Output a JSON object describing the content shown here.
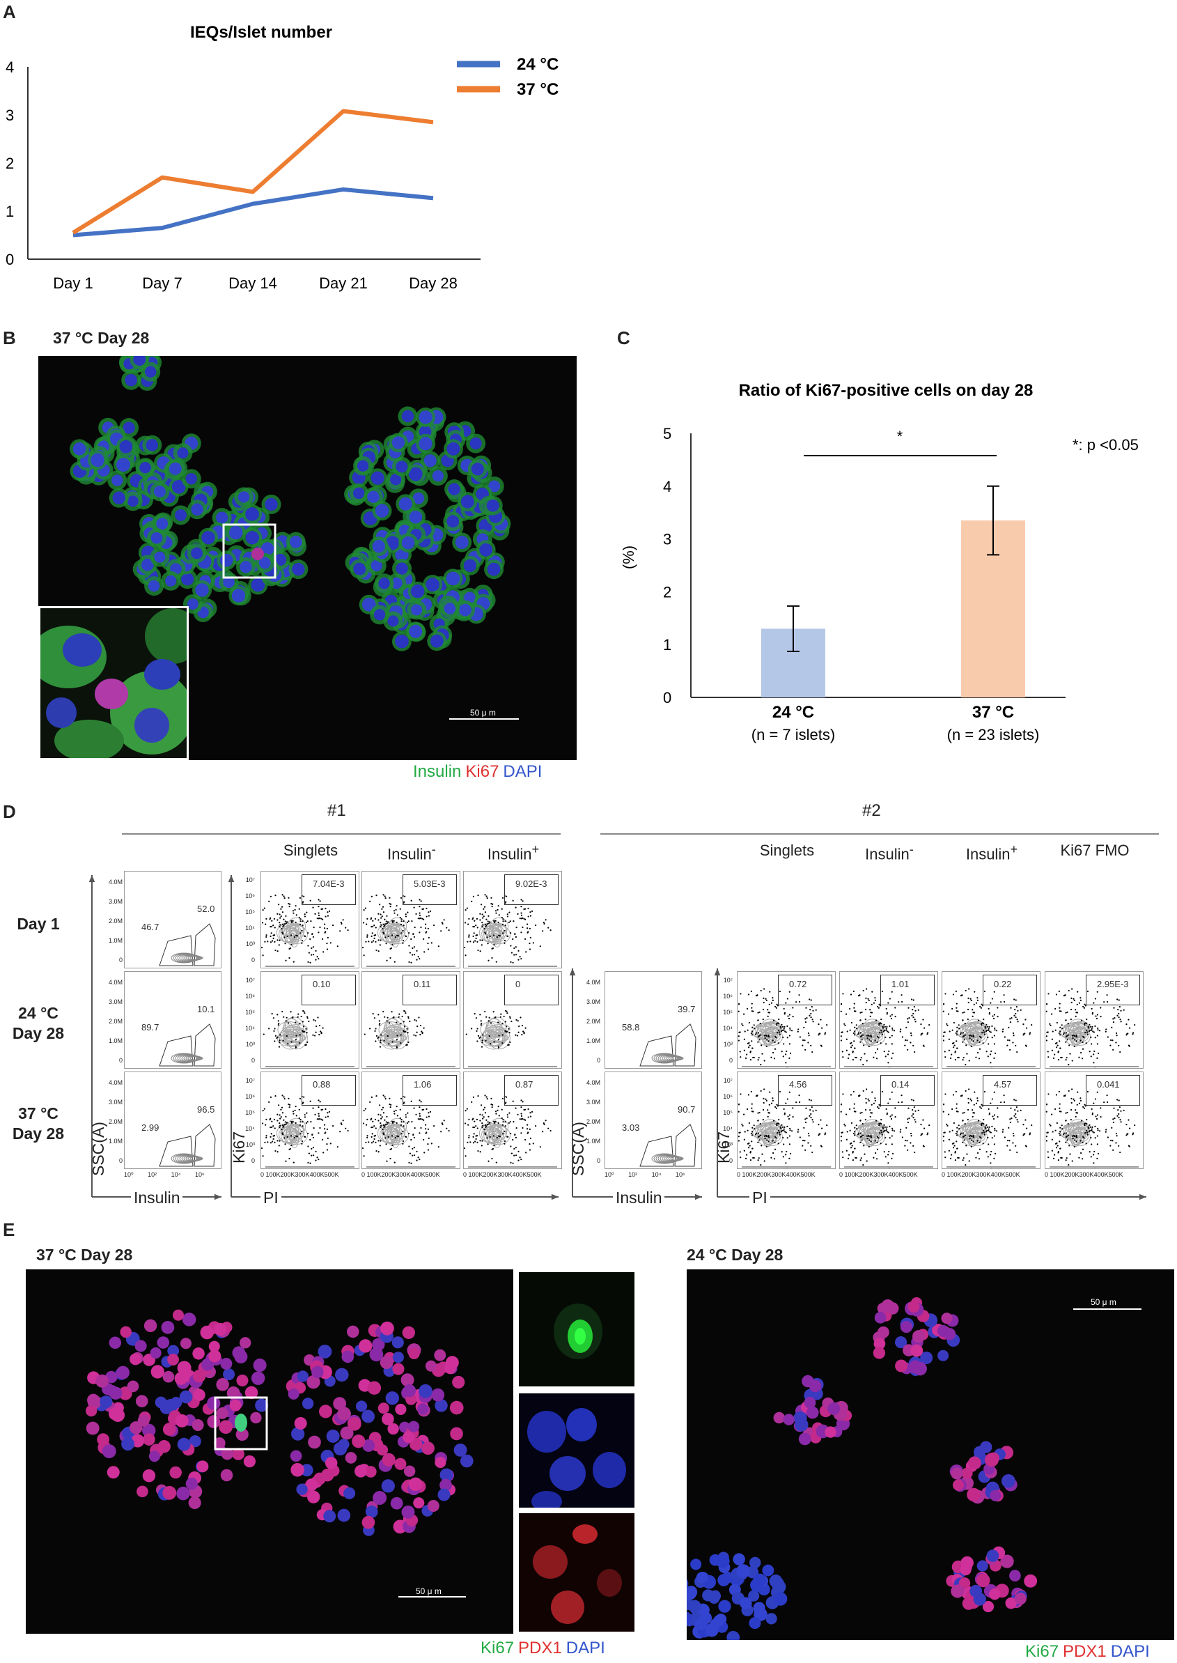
{
  "panels": {
    "a": {
      "letter": "A",
      "chart_data": {
        "type": "line",
        "title": "IEQs/Islet number",
        "xlabel": "",
        "ylabel": "",
        "categories": [
          "Day 1",
          "Day 7",
          "Day 14",
          "Day 21",
          "Day 28"
        ],
        "ylim": [
          0,
          4
        ],
        "yticks": [
          "0",
          "1",
          "2",
          "3",
          "4"
        ],
        "legend": "top-right",
        "grid": false,
        "series": [
          {
            "name": "24 °C",
            "color": "#4472c4",
            "values": [
              0.5,
              0.65,
              1.15,
              1.45,
              1.27
            ]
          },
          {
            "name": "37 °C",
            "color": "#ed7d31",
            "values": [
              0.55,
              1.7,
              1.4,
              3.08,
              2.85
            ]
          }
        ]
      }
    },
    "b": {
      "letter": "B",
      "title": "37 °C Day 28",
      "scale_bar": "50 μ m",
      "caption": [
        {
          "text": "Insulin",
          "color": "#22aa44"
        },
        {
          "text": "Ki67",
          "color": "#e03030"
        },
        {
          "text": "DAPI",
          "color": "#3355cc"
        }
      ]
    },
    "c": {
      "letter": "C",
      "chart_data": {
        "type": "bar",
        "title": "Ratio of Ki67-positive cells on day 28",
        "ylabel": "(%)",
        "xlabel": "",
        "categories": [
          "24 °C",
          "37 °C"
        ],
        "category_notes": [
          "(n = 7 islets)",
          "(n = 23 islets)"
        ],
        "values": [
          1.3,
          3.35
        ],
        "errors": [
          0.43,
          0.65
        ],
        "colors": [
          "#b4c7e7",
          "#f8cbad"
        ],
        "ylim": [
          0,
          5
        ],
        "yticks": [
          "0",
          "1",
          "2",
          "3",
          "4",
          "5"
        ],
        "significance": "*",
        "note": "*: p <0.05"
      }
    },
    "d": {
      "letter": "D",
      "group1": "#1",
      "group2": "#2",
      "columns1": [
        "Singlets",
        "Insulin-",
        "Insulin+"
      ],
      "columns2": [
        "Singlets",
        "Insulin-",
        "Insulin+",
        "Ki67 FMO"
      ],
      "rows": [
        {
          "label_line1": "Day 1",
          "label_line2": ""
        },
        {
          "label_line1": "24 °C",
          "label_line2": "Day 28"
        },
        {
          "label_line1": "37 °C",
          "label_line2": "Day 28"
        }
      ],
      "insulin_gates1": [
        {
          "neg": "46.7",
          "pos": "52.0"
        },
        {
          "neg": "89.7",
          "pos": "10.1"
        },
        {
          "neg": "2.99",
          "pos": "96.5"
        }
      ],
      "insulin_gates2": [
        {
          "neg": "58.8",
          "pos": "39.7"
        },
        {
          "neg": "3.03",
          "pos": "90.7"
        }
      ],
      "ki67_values1": [
        [
          "7.04E-3",
          "5.03E-3",
          "9.02E-3"
        ],
        [
          "0.10",
          "0.11",
          "0"
        ],
        [
          "0.88",
          "1.06",
          "0.87"
        ]
      ],
      "ki67_values2": [
        [
          "0.72",
          "1.01",
          "0.22",
          "2.95E-3"
        ],
        [
          "4.56",
          "0.14",
          "4.57",
          "0.041"
        ]
      ],
      "axis_ssc": "SSC(A)",
      "axis_insulin": "Insulin",
      "axis_ki67": "Ki67",
      "axis_pi": "PI",
      "ssc_ticks": [
        "4.0M",
        "3.0M",
        "2.0M",
        "1.0M",
        "0"
      ],
      "ki67_ticks": [
        "10⁷",
        "10⁶",
        "10⁵",
        "10⁴",
        "10³",
        "0"
      ],
      "insulin_ticks": "10⁰ 10² 10⁴ 10⁶",
      "pi_ticks": "0 100K200K300K400K500K"
    },
    "e": {
      "letter": "E",
      "left_title": "37 °C Day 28",
      "right_title": "24 °C Day 28",
      "scale_bar": "50 μ m",
      "caption": [
        {
          "text": "Ki67",
          "color": "#22aa44"
        },
        {
          "text": "PDX1",
          "color": "#e03030"
        },
        {
          "text": "DAPI",
          "color": "#3355cc"
        }
      ]
    }
  }
}
